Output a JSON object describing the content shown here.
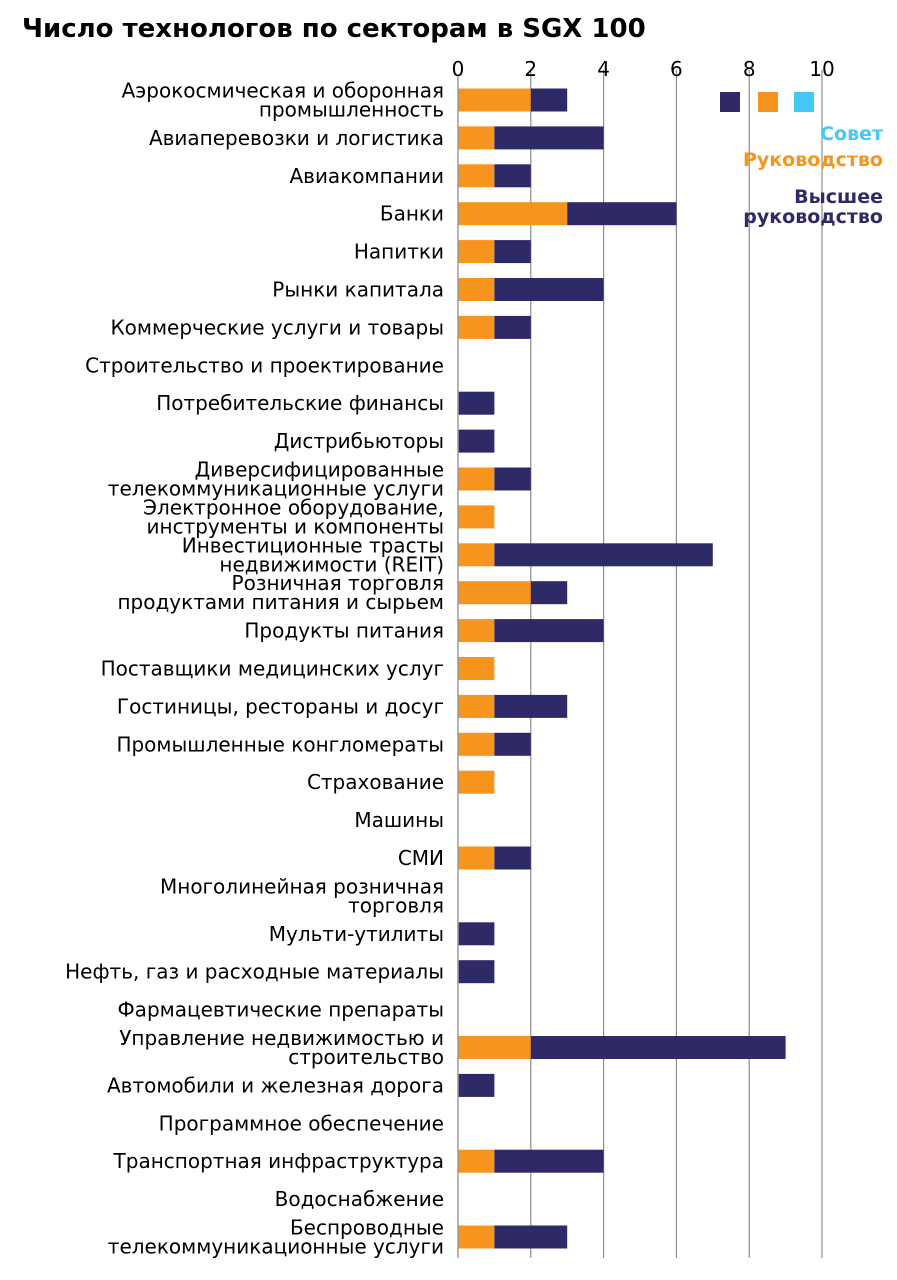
{
  "chart_data": {
    "type": "bar",
    "stacked": true,
    "orientation": "horizontal",
    "title": "Число технологов по секторам в SGX 100",
    "xlabel": "",
    "ylabel": "",
    "xlim": [
      0,
      11
    ],
    "x_ticks": [
      "0",
      "2",
      "4",
      "6",
      "8",
      "10"
    ],
    "grid": true,
    "legend_position": "top-right",
    "categories": [
      "Аэрокосмическая и оборонная промышленность",
      "Авиаперевозки и логистика",
      "Авиакомпании",
      "Банки",
      "Напитки",
      "Рынки капитала",
      "Коммерческие услуги и товары",
      "Строительство и проектирование",
      "Потребительские финансы",
      "Дистрибьюторы",
      "Диверсифицированные телекоммуникационные услуги",
      "Электронное оборудование, инструменты и компоненты",
      "Инвестиционные трасты недвижимости (REIT)",
      "Розничная торговля продуктами питания и сырьем",
      "Продукты питания",
      "Поставщики медицинских услуг",
      "Гостиницы, рестораны и досуг",
      "Промышленные конгломераты",
      "Страхование",
      "Машины",
      "СМИ",
      "Многолинейная розничная торговля",
      "Мульти-утилиты",
      "Нефть, газ и расходные материалы",
      "Фармацевтические препараты",
      "Управление недвижимостью и строительство",
      "Автомобили и железная дорога",
      "Программное обеспечение",
      "Транспортная инфраструктура",
      "Водоснабжение",
      "Беспроводные телекоммуникационные услуги"
    ],
    "category_lines": [
      [
        "Аэрокосмическая и оборонная",
        "промышленность"
      ],
      [
        "Авиаперевозки и логистика"
      ],
      [
        "Авиакомпании"
      ],
      [
        "Банки"
      ],
      [
        "Напитки"
      ],
      [
        "Рынки капитала"
      ],
      [
        "Коммерческие услуги и товары"
      ],
      [
        "Строительство и проектирование"
      ],
      [
        "Потребительские финансы"
      ],
      [
        "Дистрибьюторы"
      ],
      [
        "Диверсифицированные",
        "телекоммуникационные услуги"
      ],
      [
        "Электронное оборудование,",
        "инструменты и компоненты"
      ],
      [
        "Инвестиционные трасты",
        "недвижимости (REIT)"
      ],
      [
        "Розничная торговля",
        "продуктами питания и сырьем"
      ],
      [
        "Продукты питания"
      ],
      [
        "Поставщики медицинских услуг"
      ],
      [
        "Гостиницы, рестораны и досуг"
      ],
      [
        "Промышленные конгломераты"
      ],
      [
        "Страхование"
      ],
      [
        "Машины"
      ],
      [
        "СМИ"
      ],
      [
        "Многолинейная розничная",
        "торговля"
      ],
      [
        "Мульти-утилиты"
      ],
      [
        "Нефть, газ и расходные материалы"
      ],
      [
        "Фармацевтические препараты"
      ],
      [
        "Управление недвижимостью и",
        "строительство"
      ],
      [
        "Автомобили и железная дорога"
      ],
      [
        "Программное обеспечение"
      ],
      [
        "Транспортная инфраструктура"
      ],
      [
        "Водоснабжение"
      ],
      [
        "Беспроводные",
        "телекоммуникационные услуги"
      ]
    ],
    "series": [
      {
        "name": "Совет",
        "color": "#44c8f5",
        "values": [
          0,
          0,
          0,
          0,
          0,
          0,
          0,
          0,
          0,
          0,
          0,
          0,
          0,
          0,
          0,
          0,
          0,
          0,
          0,
          0,
          0,
          0,
          0,
          0,
          0,
          0,
          0,
          0,
          0,
          0,
          0
        ]
      },
      {
        "name": "Руководство",
        "color": "#f7941d",
        "values": [
          2,
          1,
          1,
          3,
          1,
          1,
          1,
          0,
          0,
          0,
          1,
          1,
          1,
          2,
          1,
          1,
          1,
          1,
          1,
          0,
          1,
          0,
          0,
          0,
          0,
          2,
          0,
          0,
          1,
          0,
          1
        ]
      },
      {
        "name": "Высшее руководство",
        "color": "#2e2a67",
        "values": [
          1,
          3,
          1,
          3,
          1,
          3,
          1,
          0,
          1,
          1,
          1,
          0,
          6,
          1,
          3,
          0,
          2,
          1,
          0,
          0,
          1,
          0,
          1,
          1,
          0,
          7,
          1,
          0,
          3,
          0,
          2
        ]
      }
    ],
    "legend_labels": {
      "board": "Совет",
      "management": "Руководство",
      "senior_line1": "Высшее",
      "senior_line2": "руководство"
    }
  }
}
